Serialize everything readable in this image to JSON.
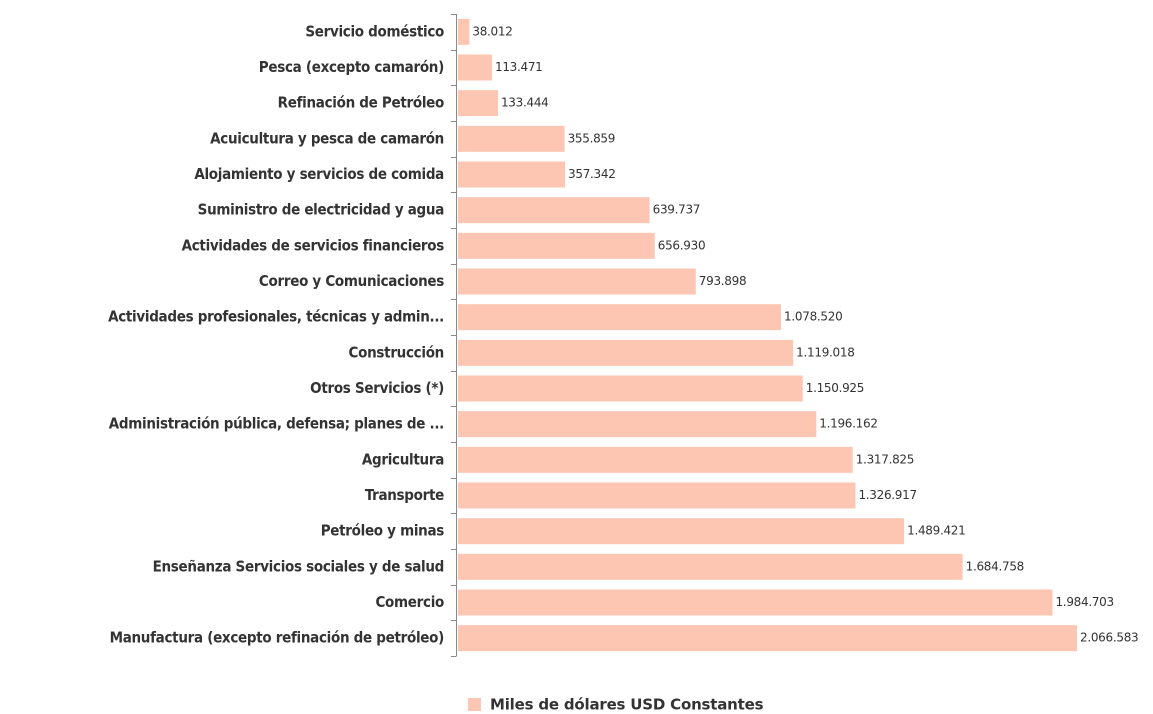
{
  "chart_data": {
    "type": "hbar",
    "categories": [
      "Servicio doméstico",
      "Pesca (excepto camarón)",
      "Refinación de Petróleo",
      "Acuicultura y pesca de camarón",
      "Alojamiento y servicios de comida",
      "Suministro de electricidad y agua",
      "Actividades de servicios financieros",
      "Correo y Comunicaciones",
      "Actividades profesionales, técnicas y admin...",
      "Construcción",
      "Otros Servicios (*)",
      "Administración pública, defensa; planes de ...",
      "Agricultura",
      "Transporte",
      "Petróleo y minas",
      "Enseñanza Servicios sociales y de salud",
      "Comercio",
      "Manufactura (excepto refinación de petróleo)"
    ],
    "series": [
      {
        "name": "Miles de dólares USD Constantes",
        "color": "#fcc6b2",
        "values": [
          38012,
          113471,
          133444,
          355859,
          357342,
          639737,
          656930,
          793898,
          1078520,
          1119018,
          1150925,
          1196162,
          1317825,
          1326917,
          1489421,
          1684758,
          1984703,
          2066583
        ],
        "value_labels": [
          "38.012",
          "113.471",
          "133.444",
          "355.859",
          "357.342",
          "639.737",
          "656.930",
          "793.898",
          "1.078.520",
          "1.119.018",
          "1.150.925",
          "1.196.162",
          "1.317.825",
          "1.326.917",
          "1.489.421",
          "1.684.758",
          "1.984.703",
          "2.066.583"
        ]
      }
    ]
  }
}
